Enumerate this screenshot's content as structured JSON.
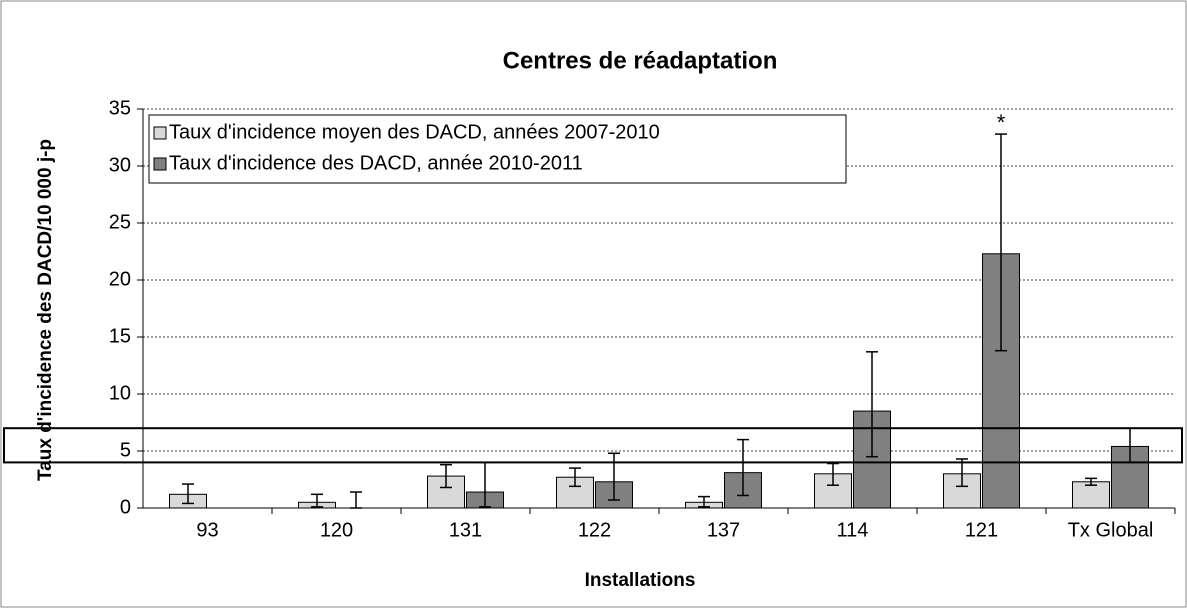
{
  "chart_data": {
    "type": "bar",
    "title": "Centres de réadaptation",
    "x_label": "Installations",
    "y_label": "Taux d'incidence des DACD/10 000 j-p",
    "categories": [
      "93",
      "120",
      "131",
      "122",
      "137",
      "114",
      "121",
      "Tx Global"
    ],
    "series": [
      {
        "name": "Taux d'incidence moyen des DACD, années 2007-2010",
        "color": "#d9d9d9",
        "values": [
          1.2,
          0.5,
          2.8,
          2.7,
          0.5,
          3.0,
          3.0,
          2.3
        ],
        "lower": [
          0.4,
          0.1,
          1.8,
          1.9,
          0.1,
          2.0,
          1.9,
          2.0
        ],
        "upper": [
          2.1,
          1.2,
          3.8,
          3.5,
          1.0,
          3.9,
          4.3,
          2.6
        ]
      },
      {
        "name": "Taux d'incidence des DACD, année 2010-2011",
        "color": "#808080",
        "values": [
          0,
          0,
          1.4,
          2.3,
          3.1,
          8.5,
          22.3,
          5.4
        ],
        "lower": [
          null,
          0,
          0.1,
          0.7,
          1.1,
          4.5,
          13.8,
          4.0
        ],
        "upper": [
          null,
          1.4,
          4.0,
          4.8,
          6.0,
          13.7,
          32.8,
          7.0
        ]
      }
    ],
    "reference_band": [
      4,
      7
    ],
    "annotations": [
      {
        "text": "*",
        "series": 1,
        "category": 6
      }
    ],
    "ylim": [
      0,
      35
    ],
    "yticks": [
      0,
      5,
      10,
      15,
      20,
      25,
      30,
      35
    ],
    "grid": true,
    "legend": "upper-left"
  }
}
